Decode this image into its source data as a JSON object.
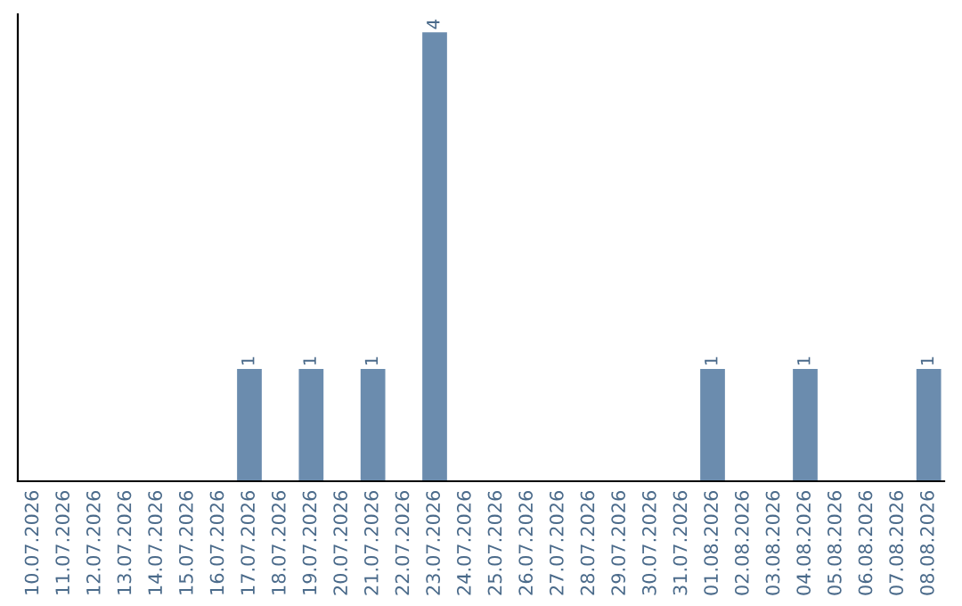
{
  "chart_data": {
    "type": "bar",
    "categories": [
      "10.07.2026",
      "11.07.2026",
      "12.07.2026",
      "13.07.2026",
      "14.07.2026",
      "15.07.2026",
      "16.07.2026",
      "17.07.2026",
      "18.07.2026",
      "19.07.2026",
      "20.07.2026",
      "21.07.2026",
      "22.07.2026",
      "23.07.2026",
      "24.07.2026",
      "25.07.2026",
      "26.07.2026",
      "27.07.2026",
      "28.07.2026",
      "29.07.2026",
      "30.07.2026",
      "31.07.2026",
      "01.08.2026",
      "02.08.2026",
      "03.08.2026",
      "04.08.2026",
      "05.08.2026",
      "06.08.2026",
      "07.08.2026",
      "08.08.2026"
    ],
    "values": [
      0,
      0,
      0,
      0,
      0,
      0,
      0,
      1,
      0,
      1,
      0,
      1,
      0,
      4,
      0,
      0,
      0,
      0,
      0,
      0,
      0,
      0,
      1,
      0,
      0,
      1,
      0,
      0,
      0,
      1
    ],
    "value_labels": [
      null,
      null,
      null,
      null,
      null,
      null,
      null,
      "1",
      null,
      "1",
      null,
      "1",
      null,
      "4",
      null,
      null,
      null,
      null,
      null,
      null,
      null,
      null,
      "1",
      null,
      null,
      "1",
      null,
      null,
      null,
      "1"
    ],
    "color": "#6b8cae",
    "tick_labels": "x",
    "grid": false,
    "legend": false
  }
}
